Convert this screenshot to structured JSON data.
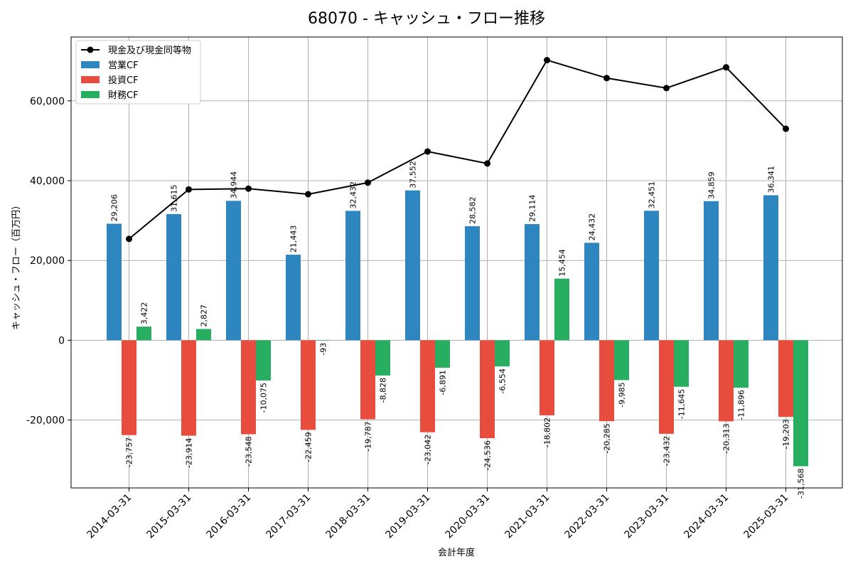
{
  "chart_data": {
    "type": "bar",
    "title": "68070 - キャッシュ・フロー推移",
    "xlabel": "会計年度",
    "ylabel": "キャッシュ・フロー（百万円）",
    "ylim": [
      -37000,
      76000
    ],
    "yticks": [
      -20000,
      0,
      20000,
      40000,
      60000
    ],
    "ytick_labels": [
      "-20,000",
      "0",
      "20,000",
      "40,000",
      "60,000"
    ],
    "grid": true,
    "legend_position": "top-left",
    "categories": [
      "2014-03-31",
      "2015-03-31",
      "2016-03-31",
      "2017-03-31",
      "2018-03-31",
      "2019-03-31",
      "2020-03-31",
      "2021-03-31",
      "2022-03-31",
      "2023-03-31",
      "2024-03-31",
      "2025-03-31"
    ],
    "series": [
      {
        "name": "営業CF",
        "kind": "bar",
        "color": "#2e86c1",
        "values": [
          29206,
          31615,
          34944,
          21443,
          32432,
          37552,
          28582,
          29114,
          24432,
          32451,
          34859,
          36341
        ],
        "labels": [
          "29,206",
          "31,615",
          "34,944",
          "21,443",
          "32,432",
          "37,552",
          "28,582",
          "29,114",
          "24,432",
          "32,451",
          "34,859",
          "36,341"
        ]
      },
      {
        "name": "投資CF",
        "kind": "bar",
        "color": "#e74c3c",
        "values": [
          -23757,
          -23914,
          -23548,
          -22459,
          -19787,
          -23042,
          -24536,
          -18802,
          -20285,
          -23432,
          -20313,
          -19203
        ],
        "labels": [
          "-23,757",
          "-23,914",
          "-23,548",
          "-22,459",
          "-19,787",
          "-23,042",
          "-24,536",
          "-18,802",
          "-20,285",
          "-23,432",
          "-20,313",
          "-19,203"
        ]
      },
      {
        "name": "財務CF",
        "kind": "bar",
        "color": "#27ae60",
        "values": [
          3422,
          2827,
          -10075,
          -93,
          -8828,
          -6891,
          -6554,
          15454,
          -9985,
          -11645,
          -11896,
          -31568
        ],
        "labels": [
          "3,422",
          "2,827",
          "-10,075",
          "-93",
          "-8,828",
          "-6,891",
          "-6,554",
          "15,454",
          "-9,985",
          "-11,645",
          "-11,896",
          "-31,568"
        ]
      },
      {
        "name": "現金及び現金同等物",
        "kind": "line",
        "color": "#000000",
        "values": [
          25400,
          37800,
          38000,
          36600,
          39500,
          47300,
          44300,
          70200,
          65700,
          63200,
          68400,
          53000
        ]
      }
    ]
  }
}
